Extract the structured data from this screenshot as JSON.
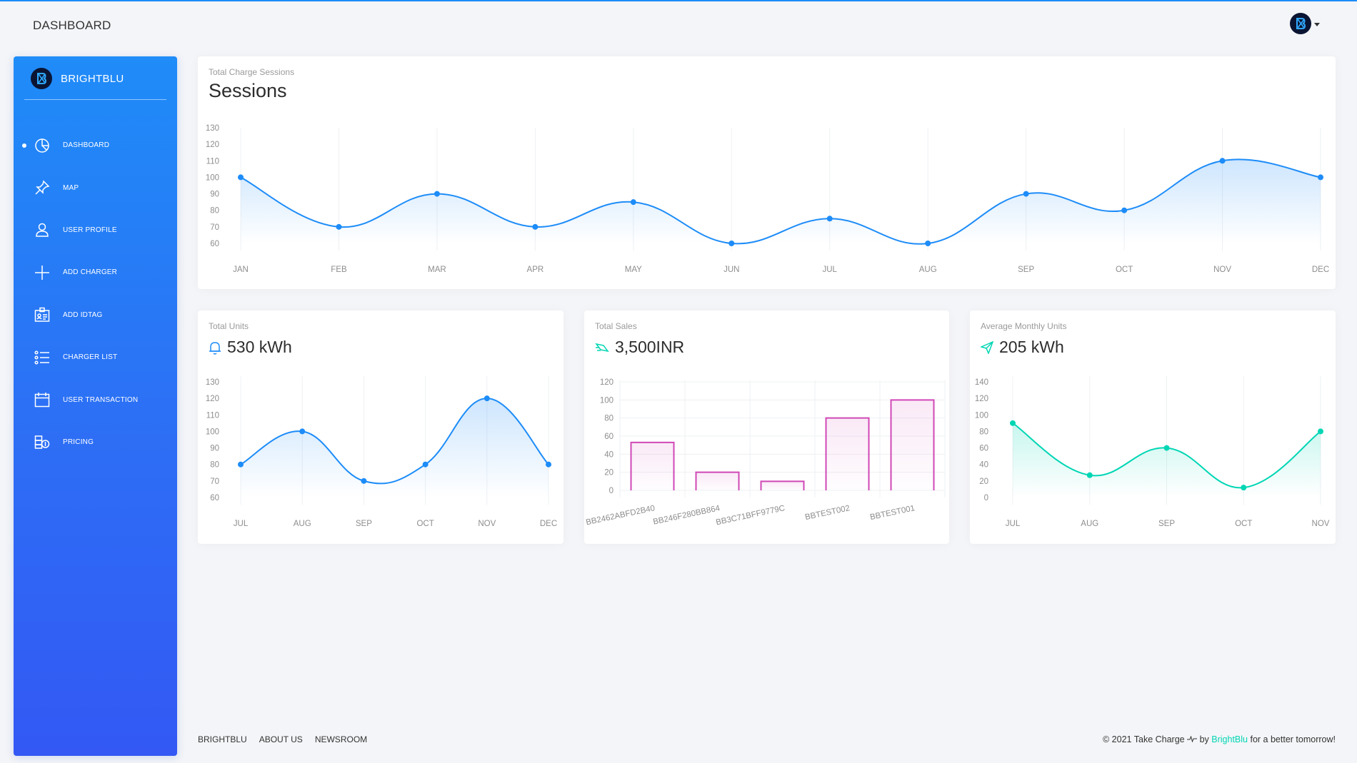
{
  "topbar": {
    "title": "DASHBOARD"
  },
  "sidebar": {
    "brand": "BRIGHTBLU",
    "items": [
      {
        "label": "DASHBOARD",
        "icon": "chart-pie-icon",
        "active": true
      },
      {
        "label": "MAP",
        "icon": "pin-icon",
        "active": false
      },
      {
        "label": "USER PROFILE",
        "icon": "user-icon",
        "active": false
      },
      {
        "label": "ADD CHARGER",
        "icon": "plus-icon",
        "active": false
      },
      {
        "label": "ADD IDTAG",
        "icon": "badge-icon",
        "active": false
      },
      {
        "label": "CHARGER LIST",
        "icon": "list-icon",
        "active": false
      },
      {
        "label": "USER TRANSACTION",
        "icon": "calendar-icon",
        "active": false
      },
      {
        "label": "PRICING",
        "icon": "money-icon",
        "active": false
      }
    ]
  },
  "cards": {
    "sessions": {
      "category": "Total Charge Sessions",
      "title": "Sessions"
    },
    "units": {
      "category": "Total Units",
      "value": "530 kWh",
      "icon": "bell-icon"
    },
    "sales": {
      "category": "Total Sales",
      "value": "3,500INR",
      "icon": "delivery-fast-icon"
    },
    "avg": {
      "category": "Average Monthly Units",
      "value": "205 kWh",
      "icon": "send-icon"
    }
  },
  "colors": {
    "blue": "#1d8cf8",
    "pink": "#d048b6",
    "teal": "#00d6b4"
  },
  "chart_data": [
    {
      "id": "sessions",
      "type": "line",
      "categories": [
        "JAN",
        "FEB",
        "MAR",
        "APR",
        "MAY",
        "JUN",
        "JUL",
        "AUG",
        "SEP",
        "OCT",
        "NOV",
        "DEC"
      ],
      "values": [
        100,
        70,
        90,
        70,
        85,
        60,
        75,
        60,
        90,
        80,
        110,
        100
      ],
      "yticks": [
        60,
        70,
        80,
        90,
        100,
        110,
        120,
        130
      ],
      "ylim": [
        60,
        130
      ],
      "grid": "vertical",
      "color": "#1d8cf8"
    },
    {
      "id": "units",
      "type": "line",
      "categories": [
        "JUL",
        "AUG",
        "SEP",
        "OCT",
        "NOV",
        "DEC"
      ],
      "values": [
        80,
        100,
        70,
        80,
        120,
        80
      ],
      "yticks": [
        60,
        70,
        80,
        90,
        100,
        110,
        120,
        130
      ],
      "ylim": [
        60,
        130
      ],
      "grid": "vertical",
      "color": "#1d8cf8"
    },
    {
      "id": "sales",
      "type": "bar",
      "categories": [
        "BB2462ABFD2B40",
        "BB246F280BB864",
        "BB3C71BFF9779C",
        "BBTEST002",
        "BBTEST001"
      ],
      "values": [
        53,
        20,
        10,
        80,
        100
      ],
      "yticks": [
        0,
        20,
        40,
        60,
        80,
        100,
        120
      ],
      "ylim": [
        0,
        120
      ],
      "grid": "both",
      "color": "#d048b6"
    },
    {
      "id": "avg",
      "type": "line",
      "categories": [
        "JUL",
        "AUG",
        "SEP",
        "OCT",
        "NOV"
      ],
      "values": [
        90,
        27,
        60,
        12,
        80
      ],
      "yticks": [
        0,
        20,
        40,
        60,
        80,
        100,
        120,
        140
      ],
      "ylim": [
        0,
        140
      ],
      "grid": "vertical",
      "color": "#00d6b4"
    }
  ],
  "footer": {
    "links": [
      "BRIGHTBLU",
      "ABOUT US",
      "NEWSROOM"
    ],
    "copyright_prefix": "© 2021 Take Charge",
    "copyright_by": "by",
    "copyright_brand": "BrightBlu",
    "copyright_suffix": "for a better tomorrow!"
  }
}
